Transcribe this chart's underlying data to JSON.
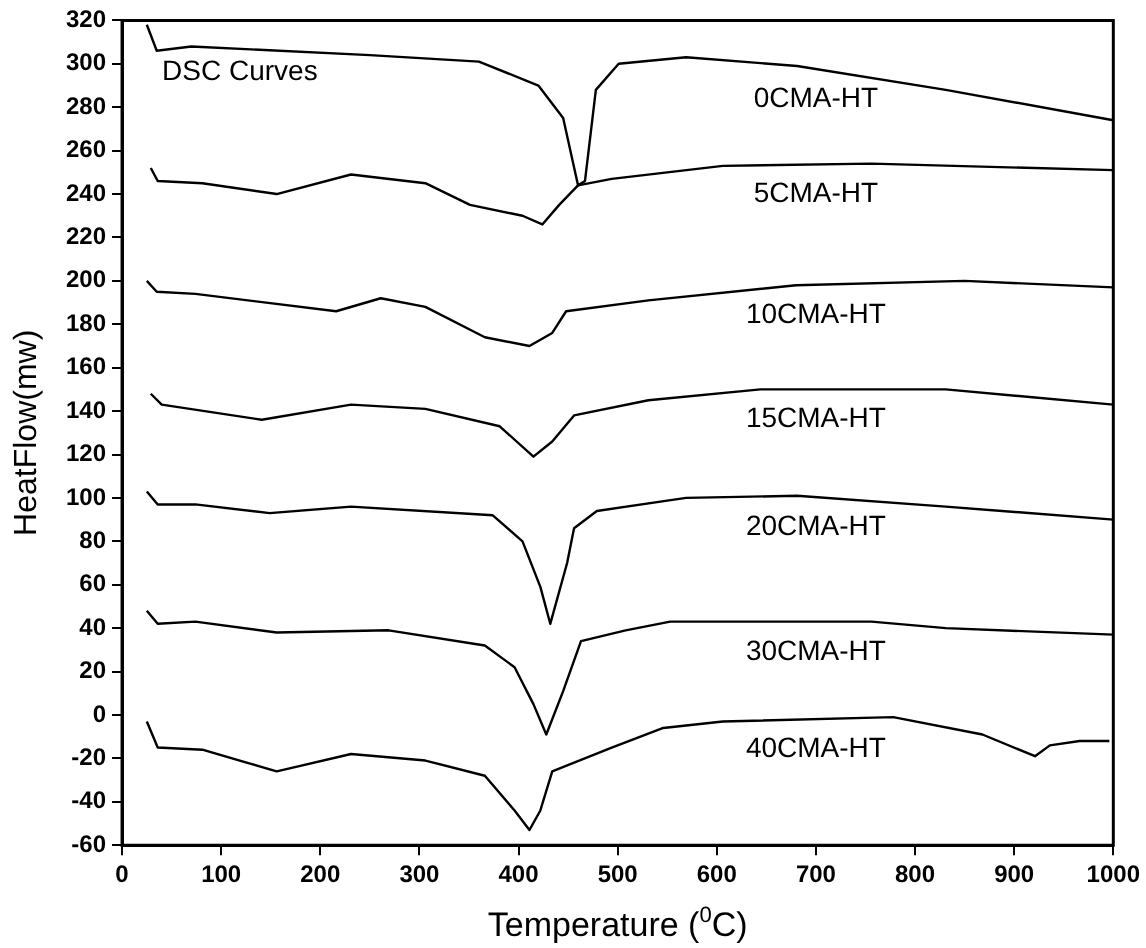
{
  "chart_data": {
    "type": "line",
    "xlabel": "Temperature ($^{0}$C)",
    "ylabel": "HeatFlow(mw)",
    "annotations": [
      "DSC Curves"
    ],
    "xlim": [
      0,
      1000
    ],
    "xticks": [
      0,
      100,
      200,
      300,
      400,
      500,
      600,
      700,
      800,
      900,
      1000
    ],
    "ylim": [
      -60,
      320
    ],
    "yticks": [
      -60,
      -40,
      -20,
      0,
      20,
      40,
      60,
      80,
      100,
      120,
      140,
      160,
      180,
      200,
      220,
      240,
      260,
      280,
      300,
      320
    ],
    "grid": false,
    "legend": false,
    "marker": "none",
    "line_style": "solid",
    "series": [
      {
        "name": "0CMA-HT",
        "color": "#000000",
        "x": [
          25,
          35,
          70,
          250,
          360,
          420,
          445,
          460,
          467,
          478,
          501,
          569,
          681,
          831,
          1000
        ],
        "values": [
          318,
          306,
          308,
          304,
          301,
          290,
          275,
          244,
          246,
          288,
          300,
          303,
          299,
          288,
          274
        ]
      },
      {
        "name": "5CMA-HT",
        "color": "#000000",
        "x": [
          29,
          36,
          81,
          156,
          231,
          306,
          351,
          404,
          424,
          441,
          460,
          494,
          606,
          756,
          1000
        ],
        "values": [
          252,
          246,
          245,
          240,
          249,
          245,
          235,
          230,
          226,
          235,
          244,
          247,
          253,
          254,
          251
        ]
      },
      {
        "name": "10CMA-HT",
        "color": "#000000",
        "x": [
          25,
          35,
          74,
          216,
          261,
          306,
          366,
          411,
          434,
          448,
          531,
          680,
          850,
          1000
        ],
        "values": [
          200,
          195,
          194,
          186,
          192,
          188,
          174,
          170,
          176,
          186,
          191,
          198,
          200,
          197
        ]
      },
      {
        "name": "15CMA-HT",
        "color": "#000000",
        "x": [
          29,
          40,
          141,
          231,
          306,
          381,
          415,
          434,
          456,
          531,
          644,
          831,
          1000
        ],
        "values": [
          148,
          143,
          136,
          143,
          141,
          133,
          119,
          126,
          138,
          145,
          150,
          150,
          143
        ]
      },
      {
        "name": "20CMA-HT",
        "color": "#000000",
        "x": [
          25,
          36,
          74,
          149,
          231,
          374,
          404,
          422,
          432,
          449,
          456,
          479,
          569,
          681,
          831,
          1000
        ],
        "values": [
          103,
          97,
          97,
          93,
          96,
          92,
          80,
          59,
          42,
          70,
          86,
          94,
          100,
          101,
          96,
          90
        ]
      },
      {
        "name": "30CMA-HT",
        "color": "#000000",
        "x": [
          25,
          36,
          74,
          156,
          269,
          366,
          396,
          415,
          428,
          445,
          463,
          508,
          553,
          756,
          831,
          1000
        ],
        "values": [
          48,
          42,
          43,
          38,
          39,
          32,
          22,
          5,
          -9,
          11,
          34,
          39,
          43,
          43,
          40,
          37
        ]
      },
      {
        "name": "40CMA-HT",
        "color": "#000000",
        "x": [
          25,
          36,
          81,
          156,
          231,
          306,
          366,
          396,
          411,
          422,
          434,
          494,
          546,
          606,
          778,
          868,
          921,
          936,
          966,
          996
        ],
        "values": [
          -3,
          -15,
          -16,
          -26,
          -18,
          -21,
          -28,
          -44,
          -53,
          -44,
          -26,
          -15,
          -6,
          -3,
          -1,
          -9,
          -19,
          -14,
          -12,
          -12
        ]
      }
    ]
  }
}
